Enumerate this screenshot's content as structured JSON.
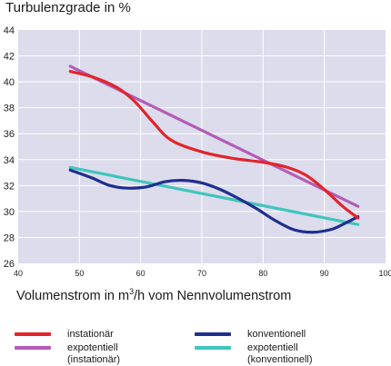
{
  "chart_data": {
    "type": "line",
    "title": "Turbulenzgrade in %",
    "xlabel_prefix": "Volumenstrom in m",
    "xlabel_sup": "3",
    "xlabel_suffix": "/h vom Nennvolumenstrom",
    "xlim": [
      40,
      100
    ],
    "ylim": [
      26,
      44
    ],
    "x_ticks": [
      40,
      50,
      60,
      70,
      80,
      90,
      100
    ],
    "y_ticks": [
      26,
      28,
      30,
      32,
      34,
      36,
      38,
      40,
      42,
      44
    ],
    "grid": true,
    "plot_background": "#dcdcec",
    "grid_color": "#ffffff",
    "series": [
      {
        "name": "instationär",
        "color": "#e2242b",
        "x": [
          48.5,
          52,
          56,
          59,
          62,
          65,
          70,
          75,
          80,
          84,
          87,
          90,
          93,
          95.5
        ],
        "y": [
          40.8,
          40.4,
          39.6,
          38.5,
          36.9,
          35.5,
          34.6,
          34.1,
          33.8,
          33.4,
          32.8,
          31.7,
          30.4,
          29.5
        ]
      },
      {
        "name": "expotentiell\n(instationär)",
        "color": "#b35cb5",
        "x": [
          48.5,
          95.5
        ],
        "y": [
          41.2,
          30.4
        ]
      },
      {
        "name": "konventionell",
        "color": "#1f2f8e",
        "x": [
          48.5,
          52,
          55,
          58,
          61,
          64,
          67,
          70,
          73,
          76,
          79,
          82,
          85,
          88,
          91,
          93,
          95.5
        ],
        "y": [
          33.2,
          32.6,
          32.0,
          31.8,
          31.9,
          32.3,
          32.4,
          32.2,
          31.7,
          31.0,
          30.2,
          29.3,
          28.6,
          28.4,
          28.6,
          29.0,
          29.6
        ]
      },
      {
        "name": "expotentiell\n(konventionell)",
        "color": "#3fc5bd",
        "x": [
          48.5,
          95.5
        ],
        "y": [
          33.4,
          29.0
        ]
      }
    ]
  }
}
